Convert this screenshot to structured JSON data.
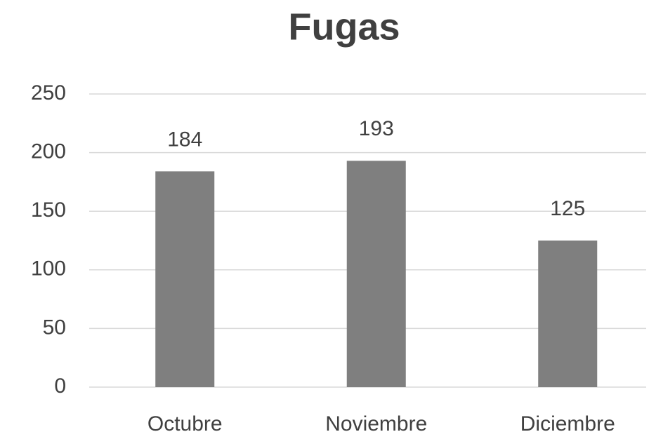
{
  "chart_data": {
    "type": "bar",
    "title": "Fugas",
    "categories": [
      "Octubre",
      "Noviembre",
      "Diciembre"
    ],
    "values": [
      184,
      193,
      125
    ],
    "color": "#7f7f7f",
    "data_labels": true,
    "ylim": [
      0,
      250
    ],
    "yticks": [
      0,
      50,
      100,
      150,
      200,
      250
    ],
    "grid": true
  }
}
